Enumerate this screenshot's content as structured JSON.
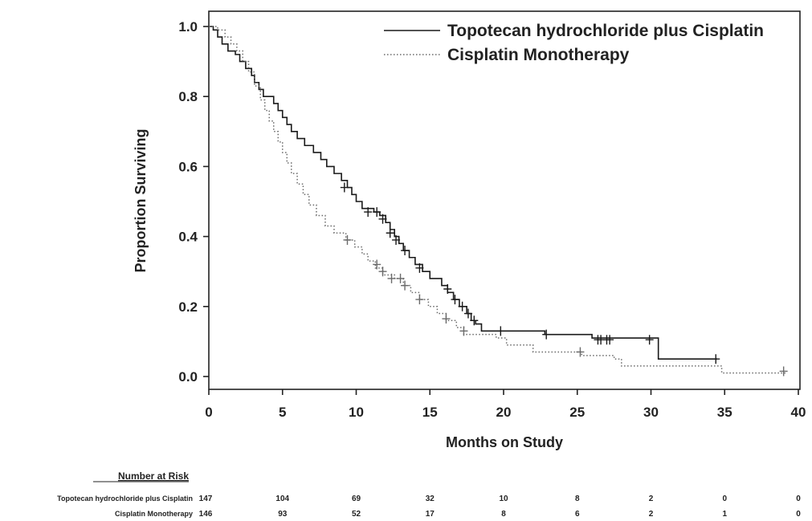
{
  "chart_data": {
    "type": "line",
    "subtype": "kaplan-meier",
    "xlabel": "Months on Study",
    "ylabel": "Proportion Surviving",
    "xlim": [
      0,
      40
    ],
    "ylim": [
      0,
      1.0
    ],
    "x_ticks": [
      "0",
      "5",
      "10",
      "15",
      "20",
      "25",
      "30",
      "35",
      "40"
    ],
    "y_ticks": [
      "0.0",
      "0.2",
      "0.4",
      "0.6",
      "0.8",
      "1.0"
    ],
    "grid": false,
    "legend_position": "top-right",
    "series": [
      {
        "name": "Topotecan hydrochloride plus Cisplatin",
        "line_style": "solid",
        "color": "#1a1a1a",
        "steps": [
          [
            0,
            1.0
          ],
          [
            0.3,
            0.99
          ],
          [
            0.6,
            0.97
          ],
          [
            0.9,
            0.95
          ],
          [
            1.3,
            0.93
          ],
          [
            1.8,
            0.92
          ],
          [
            2.1,
            0.9
          ],
          [
            2.5,
            0.88
          ],
          [
            2.9,
            0.86
          ],
          [
            3.1,
            0.84
          ],
          [
            3.4,
            0.82
          ],
          [
            3.7,
            0.8
          ],
          [
            4.4,
            0.78
          ],
          [
            4.7,
            0.76
          ],
          [
            5.0,
            0.74
          ],
          [
            5.3,
            0.72
          ],
          [
            5.6,
            0.7
          ],
          [
            6.0,
            0.68
          ],
          [
            6.5,
            0.66
          ],
          [
            7.1,
            0.64
          ],
          [
            7.6,
            0.62
          ],
          [
            8.0,
            0.6
          ],
          [
            8.5,
            0.58
          ],
          [
            9.0,
            0.56
          ],
          [
            9.4,
            0.54
          ],
          [
            9.7,
            0.52
          ],
          [
            10.0,
            0.5
          ],
          [
            10.4,
            0.48
          ],
          [
            11.2,
            0.47
          ],
          [
            11.6,
            0.46
          ],
          [
            12.0,
            0.44
          ],
          [
            12.3,
            0.42
          ],
          [
            12.6,
            0.4
          ],
          [
            12.9,
            0.38
          ],
          [
            13.2,
            0.36
          ],
          [
            13.6,
            0.34
          ],
          [
            14.0,
            0.32
          ],
          [
            14.5,
            0.3
          ],
          [
            15.0,
            0.28
          ],
          [
            15.8,
            0.26
          ],
          [
            16.2,
            0.24
          ],
          [
            16.6,
            0.22
          ],
          [
            17.0,
            0.2
          ],
          [
            17.5,
            0.18
          ],
          [
            17.8,
            0.16
          ],
          [
            18.1,
            0.15
          ],
          [
            18.5,
            0.13
          ],
          [
            22.8,
            0.12
          ],
          [
            26.0,
            0.11
          ],
          [
            30.5,
            0.05
          ],
          [
            34.5,
            0.05
          ]
        ],
        "censored": [
          [
            9.2,
            0.54
          ],
          [
            10.8,
            0.47
          ],
          [
            11.4,
            0.47
          ],
          [
            11.8,
            0.45
          ],
          [
            12.3,
            0.41
          ],
          [
            12.7,
            0.39
          ],
          [
            13.3,
            0.36
          ],
          [
            14.3,
            0.31
          ],
          [
            16.2,
            0.25
          ],
          [
            16.7,
            0.22
          ],
          [
            17.2,
            0.2
          ],
          [
            17.6,
            0.18
          ],
          [
            18.0,
            0.16
          ],
          [
            19.8,
            0.13
          ],
          [
            22.9,
            0.12
          ],
          [
            26.4,
            0.105
          ],
          [
            26.6,
            0.105
          ],
          [
            27.0,
            0.105
          ],
          [
            27.2,
            0.105
          ],
          [
            29.9,
            0.105
          ],
          [
            34.4,
            0.05
          ]
        ]
      },
      {
        "name": "Cisplatin Monotherapy",
        "line_style": "dotted",
        "color": "#6a6a6a",
        "steps": [
          [
            0,
            1.0
          ],
          [
            0.6,
            0.99
          ],
          [
            1.1,
            0.97
          ],
          [
            1.5,
            0.95
          ],
          [
            1.9,
            0.93
          ],
          [
            2.3,
            0.9
          ],
          [
            2.7,
            0.87
          ],
          [
            3.1,
            0.83
          ],
          [
            3.5,
            0.79
          ],
          [
            3.8,
            0.76
          ],
          [
            4.1,
            0.73
          ],
          [
            4.4,
            0.7
          ],
          [
            4.7,
            0.67
          ],
          [
            5.0,
            0.64
          ],
          [
            5.3,
            0.61
          ],
          [
            5.6,
            0.58
          ],
          [
            6.0,
            0.55
          ],
          [
            6.4,
            0.52
          ],
          [
            6.8,
            0.49
          ],
          [
            7.3,
            0.46
          ],
          [
            7.9,
            0.43
          ],
          [
            8.5,
            0.41
          ],
          [
            9.3,
            0.39
          ],
          [
            9.9,
            0.37
          ],
          [
            10.4,
            0.35
          ],
          [
            10.8,
            0.33
          ],
          [
            11.3,
            0.31
          ],
          [
            11.8,
            0.29
          ],
          [
            12.6,
            0.28
          ],
          [
            13.2,
            0.26
          ],
          [
            13.7,
            0.24
          ],
          [
            14.3,
            0.22
          ],
          [
            14.9,
            0.2
          ],
          [
            15.5,
            0.18
          ],
          [
            16.1,
            0.16
          ],
          [
            16.8,
            0.14
          ],
          [
            17.3,
            0.12
          ],
          [
            19.5,
            0.11
          ],
          [
            20.2,
            0.09
          ],
          [
            22.0,
            0.07
          ],
          [
            25.3,
            0.06
          ],
          [
            27.5,
            0.05
          ],
          [
            28.0,
            0.03
          ],
          [
            34.8,
            0.01
          ],
          [
            39.2,
            0.01
          ]
        ],
        "censored": [
          [
            9.4,
            0.39
          ],
          [
            11.4,
            0.32
          ],
          [
            11.8,
            0.3
          ],
          [
            12.4,
            0.28
          ],
          [
            13.0,
            0.28
          ],
          [
            13.3,
            0.26
          ],
          [
            14.3,
            0.22
          ],
          [
            16.1,
            0.165
          ],
          [
            17.3,
            0.13
          ],
          [
            25.2,
            0.07
          ],
          [
            39.0,
            0.015
          ]
        ]
      }
    ]
  },
  "risk_table": {
    "title": "Number at Risk",
    "timepoints": [
      0,
      5,
      10,
      15,
      20,
      25,
      30,
      35,
      40
    ],
    "rows": [
      {
        "label": "Topotecan hydrochloride plus Cisplatin",
        "values": [
          "147",
          "104",
          "69",
          "32",
          "10",
          "8",
          "2",
          "0",
          "0"
        ]
      },
      {
        "label": "Cisplatin Monotherapy",
        "values": [
          "146",
          "93",
          "52",
          "17",
          "8",
          "6",
          "2",
          "1",
          "0"
        ]
      }
    ]
  }
}
